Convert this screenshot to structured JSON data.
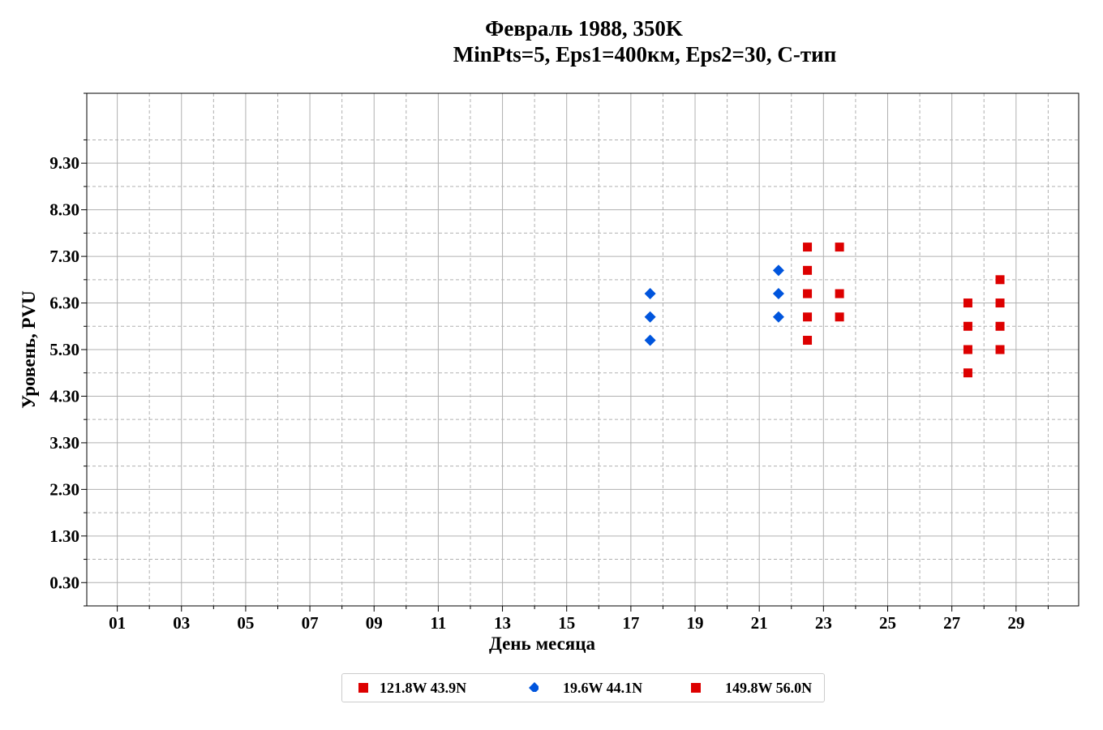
{
  "chart_data": {
    "type": "scatter",
    "title": "Февраль 1988, 350K",
    "subtitle": "MinPts=5, Eps1=400км, Eps2=30, C-тип",
    "xlabel": "День месяца",
    "ylabel": "Уровень, PVU",
    "xlim": [
      0.05,
      30.95
    ],
    "ylim": [
      -0.2,
      10.8
    ],
    "x_ticks": [
      "01",
      "03",
      "05",
      "07",
      "09",
      "11",
      "13",
      "15",
      "17",
      "19",
      "21",
      "23",
      "25",
      "27",
      "29"
    ],
    "x_tick_values": [
      1,
      3,
      5,
      7,
      9,
      11,
      13,
      15,
      17,
      19,
      21,
      23,
      25,
      27,
      29
    ],
    "y_ticks": [
      "0.30",
      "1.30",
      "2.30",
      "3.30",
      "4.30",
      "5.30",
      "6.30",
      "7.30",
      "8.30",
      "9.30"
    ],
    "y_tick_values": [
      0.3,
      1.3,
      2.3,
      3.3,
      4.3,
      5.3,
      6.3,
      7.3,
      8.3,
      9.3
    ],
    "grid": true,
    "legend_position": "bottom-center",
    "series": [
      {
        "name": "121.8W 43.9N",
        "marker": "square",
        "color": "#dd0000",
        "points": []
      },
      {
        "name": "19.6W 44.1N",
        "marker": "diamond",
        "color": "#0055dd",
        "points": [
          [
            17.6,
            6.5
          ],
          [
            17.6,
            6.0
          ],
          [
            17.6,
            5.5
          ],
          [
            21.6,
            7.0
          ],
          [
            21.6,
            6.5
          ],
          [
            21.6,
            6.0
          ]
        ]
      },
      {
        "name": "149.8W 56.0N",
        "marker": "square",
        "color": "#dd0000",
        "points": [
          [
            22.5,
            7.5
          ],
          [
            22.5,
            7.0
          ],
          [
            22.5,
            6.5
          ],
          [
            22.5,
            6.0
          ],
          [
            22.5,
            5.5
          ],
          [
            23.5,
            7.5
          ],
          [
            23.5,
            6.5
          ],
          [
            23.5,
            6.0
          ],
          [
            27.5,
            6.3
          ],
          [
            27.5,
            5.8
          ],
          [
            27.5,
            5.3
          ],
          [
            27.5,
            4.8
          ],
          [
            28.5,
            6.8
          ],
          [
            28.5,
            6.3
          ],
          [
            28.5,
            5.8
          ],
          [
            28.5,
            5.3
          ]
        ]
      }
    ]
  }
}
